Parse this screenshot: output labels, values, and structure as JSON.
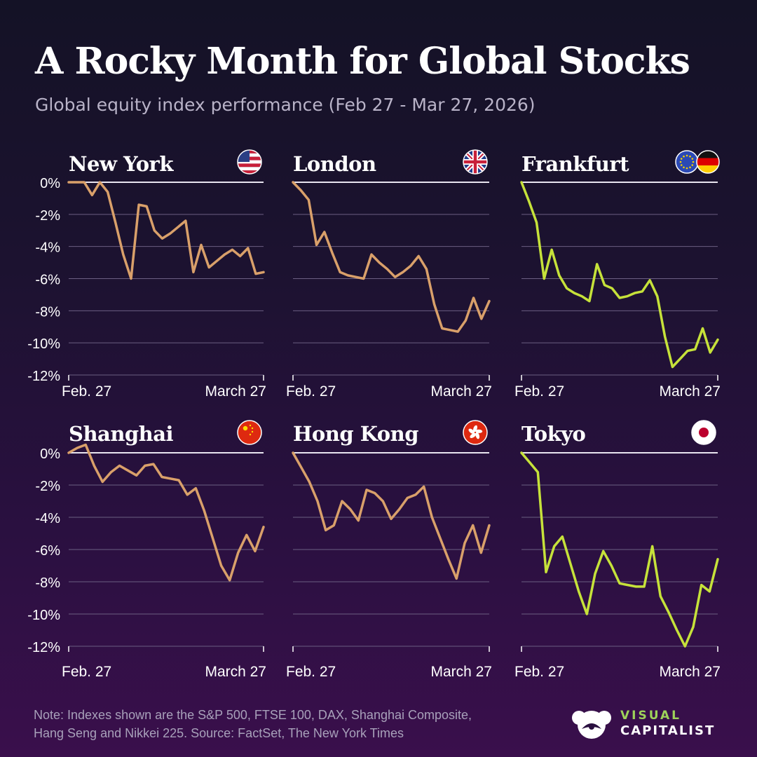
{
  "header": {
    "title": "A Rocky Month for Global Stocks",
    "subtitle": "Global equity index performance (Feb 27 - Mar 27, 2026)"
  },
  "colors": {
    "orange_line": "#d9a06a",
    "green_line": "#c6e23a",
    "grid": "#6b5f82",
    "zero_line": "#e8e4ef"
  },
  "chart_data": [
    {
      "type": "line",
      "title": "New York",
      "flag_icon": "us-flag-icon",
      "line_color": "#d9a06a",
      "x_start_label": "Feb. 27",
      "x_end_label": "March 27",
      "ylim": [
        -12,
        0
      ],
      "y_ticks": [
        "0%",
        "-2%",
        "-4%",
        "-6%",
        "-8%",
        "-10%",
        "-12%"
      ],
      "values": [
        0,
        0,
        0,
        -0.8,
        0,
        -0.6,
        -2.5,
        -4.5,
        -6.0,
        -1.4,
        -1.5,
        -3.0,
        -3.5,
        -3.2,
        -2.8,
        -2.4,
        -5.6,
        -3.9,
        -5.3,
        -4.9,
        -4.5,
        -4.2,
        -4.6,
        -4.1,
        -5.7,
        -5.6
      ]
    },
    {
      "type": "line",
      "title": "London",
      "flag_icon": "uk-flag-icon",
      "line_color": "#d9a06a",
      "x_start_label": "Feb. 27",
      "x_end_label": "March 27",
      "ylim": [
        -12,
        0
      ],
      "y_ticks": [
        "0%",
        "-2%",
        "-4%",
        "-6%",
        "-8%",
        "-10%",
        "-12%"
      ],
      "values": [
        0,
        -0.5,
        -1.1,
        -3.9,
        -3.1,
        -4.4,
        -5.6,
        -5.8,
        -5.9,
        -6.0,
        -4.5,
        -5.0,
        -5.4,
        -5.9,
        -5.6,
        -5.2,
        -4.6,
        -5.4,
        -7.6,
        -9.1,
        -9.2,
        -9.3,
        -8.6,
        -7.2,
        -8.5,
        -7.4
      ]
    },
    {
      "type": "line",
      "title": "Frankfurt",
      "flag_icon": "eu-germany-flags-icon",
      "line_color": "#c6e23a",
      "x_start_label": "Feb. 27",
      "x_end_label": "March 27",
      "ylim": [
        -12,
        0
      ],
      "y_ticks": [
        "0%",
        "-2%",
        "-4%",
        "-6%",
        "-8%",
        "-10%",
        "-12%"
      ],
      "values": [
        0,
        -1.2,
        -2.5,
        -6.0,
        -4.2,
        -5.8,
        -6.6,
        -6.9,
        -7.1,
        -7.4,
        -5.1,
        -6.4,
        -6.6,
        -7.2,
        -7.1,
        -6.9,
        -6.8,
        -6.1,
        -7.1,
        -9.6,
        -11.5,
        -11.0,
        -10.5,
        -10.4,
        -9.1,
        -10.6,
        -9.8
      ]
    },
    {
      "type": "line",
      "title": "Shanghai",
      "flag_icon": "china-flag-icon",
      "line_color": "#d9a06a",
      "x_start_label": "Feb. 27",
      "x_end_label": "March 27",
      "ylim": [
        -12,
        0
      ],
      "y_ticks": [
        "0%",
        "-2%",
        "-4%",
        "-6%",
        "-8%",
        "-10%",
        "-12%"
      ],
      "values": [
        0,
        0.3,
        0.5,
        -0.8,
        -1.8,
        -1.2,
        -0.8,
        -1.1,
        -1.4,
        -0.8,
        -0.7,
        -1.5,
        -1.6,
        -1.7,
        -2.6,
        -2.2,
        -3.6,
        -5.3,
        -7.0,
        -7.9,
        -6.2,
        -5.1,
        -6.1,
        -4.6
      ]
    },
    {
      "type": "line",
      "title": "Hong Kong",
      "flag_icon": "hong-kong-flag-icon",
      "line_color": "#d9a06a",
      "x_start_label": "Feb. 27",
      "x_end_label": "March 27",
      "ylim": [
        -12,
        0
      ],
      "y_ticks": [
        "0%",
        "-2%",
        "-4%",
        "-6%",
        "-8%",
        "-10%",
        "-12%"
      ],
      "values": [
        0,
        -0.9,
        -1.8,
        -3.0,
        -4.8,
        -4.5,
        -3.0,
        -3.5,
        -4.2,
        -2.3,
        -2.5,
        -3.0,
        -4.1,
        -3.5,
        -2.8,
        -2.6,
        -2.1,
        -4.0,
        -5.3,
        -6.6,
        -7.8,
        -5.6,
        -4.5,
        -6.2,
        -4.5
      ]
    },
    {
      "type": "line",
      "title": "Tokyo",
      "flag_icon": "japan-flag-icon",
      "line_color": "#c6e23a",
      "x_start_label": "Feb. 27",
      "x_end_label": "March 27",
      "ylim": [
        -12,
        0
      ],
      "y_ticks": [
        "0%",
        "-2%",
        "-4%",
        "-6%",
        "-8%",
        "-10%",
        "-12%"
      ],
      "values": [
        0,
        -0.6,
        -1.2,
        -7.4,
        -5.8,
        -5.2,
        -6.9,
        -8.6,
        -10.0,
        -7.5,
        -6.1,
        -7.0,
        -8.1,
        -8.2,
        -8.3,
        -8.3,
        -5.8,
        -8.9,
        -9.9,
        -11.0,
        -12.0,
        -10.8,
        -8.2,
        -8.6,
        -6.6
      ]
    }
  ],
  "footer": {
    "note_line1": "Note: Indexes shown are the S&P 500, FTSE 100, DAX, Shanghai Composite,",
    "note_line2": "Hang Seng and Nikkei 225.  Source: FactSet, The New York Times",
    "logo_line1": "VISUAL",
    "logo_line2": "CAPITALIST"
  }
}
